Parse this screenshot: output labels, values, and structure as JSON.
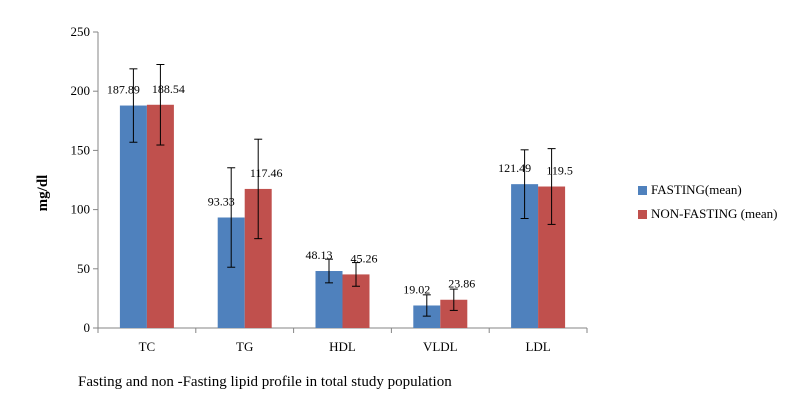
{
  "chart_data": {
    "type": "bar",
    "title": "",
    "caption": "Fasting and non -Fasting  lipid profile  in total study population",
    "xlabel": "",
    "ylabel": "mg/dl",
    "ylim": [
      0,
      250
    ],
    "yticks": [
      "0",
      "50",
      "100",
      "150",
      "200",
      "250"
    ],
    "grid": false,
    "legend_position": "right",
    "categories": [
      "TC",
      "TG",
      "HDL",
      "VLDL",
      "LDL"
    ],
    "series": [
      {
        "name": "FASTING(mean)",
        "color": "#4F81BD",
        "values": [
          187.89,
          93.33,
          48.13,
          19.02,
          121.49
        ],
        "labels": [
          "187.89",
          "93.33",
          "48.13",
          "19.02",
          "121.49"
        ],
        "error": [
          31,
          42,
          10,
          9,
          29
        ]
      },
      {
        "name": "NON-FASTING (mean)",
        "color": "#C0504D",
        "values": [
          188.54,
          117.46,
          45.26,
          23.86,
          119.5
        ],
        "labels": [
          "188.54",
          "117.46",
          "45.26",
          "23.86",
          "119.5"
        ],
        "error": [
          34,
          42,
          10,
          9,
          32
        ]
      }
    ]
  }
}
